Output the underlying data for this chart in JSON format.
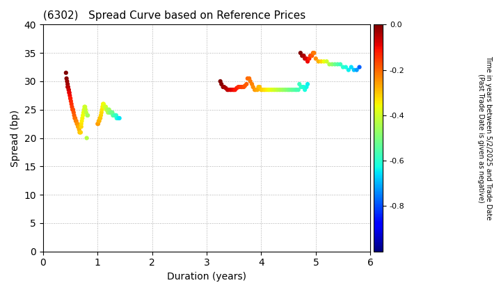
{
  "title": "(6302)   Spread Curve based on Reference Prices",
  "xlabel": "Duration (years)",
  "ylabel": "Spread (bp)",
  "colorbar_label": "Time in years between 5/2/2025 and Trade Date\n(Past Trade Date is given as negative)",
  "xlim": [
    0,
    6
  ],
  "ylim": [
    0,
    40
  ],
  "xticks": [
    0,
    1,
    2,
    3,
    4,
    5,
    6
  ],
  "yticks": [
    0,
    5,
    10,
    15,
    20,
    25,
    30,
    35,
    40
  ],
  "cmap": "jet",
  "vmin": 0.0,
  "vmax": -1.0,
  "colorbar_ticks": [
    0.0,
    -0.2,
    -0.4,
    -0.6,
    -0.8
  ],
  "colorbar_vmin": -1.0,
  "colorbar_vmax": 0.0,
  "cluster1": {
    "duration": [
      0.42,
      0.43,
      0.44,
      0.45,
      0.45,
      0.46,
      0.47,
      0.47,
      0.48,
      0.48,
      0.49,
      0.5,
      0.5,
      0.51,
      0.52,
      0.53,
      0.54,
      0.55,
      0.56,
      0.57,
      0.58,
      0.59,
      0.6,
      0.61,
      0.62,
      0.63,
      0.64,
      0.65,
      0.66,
      0.67,
      0.68,
      0.69,
      0.7,
      0.7,
      0.71,
      0.72,
      0.73,
      0.74,
      0.75,
      0.76,
      0.77,
      0.78,
      0.79,
      0.8,
      0.81,
      0.82
    ],
    "spread": [
      31.5,
      30.5,
      30.0,
      29.5,
      29.0,
      29.0,
      28.5,
      28.5,
      28.0,
      28.0,
      27.5,
      27.0,
      27.0,
      26.5,
      26.0,
      25.5,
      25.0,
      25.0,
      24.5,
      24.0,
      23.5,
      23.5,
      23.0,
      23.0,
      22.5,
      22.5,
      22.0,
      22.0,
      21.5,
      21.0,
      21.0,
      21.0,
      22.0,
      22.5,
      23.0,
      23.5,
      24.0,
      24.5,
      25.0,
      25.5,
      25.5,
      25.0,
      24.5,
      20.0,
      24.0,
      24.0
    ],
    "time": [
      0.0,
      -0.01,
      -0.02,
      -0.03,
      -0.04,
      -0.05,
      -0.06,
      -0.07,
      -0.08,
      -0.09,
      -0.1,
      -0.11,
      -0.12,
      -0.13,
      -0.14,
      -0.15,
      -0.16,
      -0.17,
      -0.18,
      -0.19,
      -0.2,
      -0.21,
      -0.22,
      -0.23,
      -0.24,
      -0.25,
      -0.26,
      -0.27,
      -0.28,
      -0.29,
      -0.3,
      -0.31,
      -0.32,
      -0.33,
      -0.34,
      -0.35,
      -0.36,
      -0.37,
      -0.38,
      -0.39,
      -0.4,
      -0.41,
      -0.42,
      -0.43,
      -0.44,
      -0.45
    ]
  },
  "cluster2": {
    "duration": [
      1.0,
      1.01,
      1.02,
      1.03,
      1.04,
      1.05,
      1.06,
      1.07,
      1.08,
      1.09,
      1.1,
      1.11,
      1.12,
      1.13,
      1.14,
      1.15,
      1.16,
      1.17,
      1.18,
      1.19,
      1.2,
      1.21,
      1.22,
      1.23,
      1.24,
      1.25,
      1.26,
      1.27,
      1.28,
      1.29,
      1.3,
      1.31,
      1.32,
      1.33,
      1.34,
      1.35,
      1.36,
      1.37,
      1.38,
      1.39,
      1.4
    ],
    "spread": [
      22.5,
      22.5,
      23.0,
      23.0,
      23.5,
      23.5,
      24.0,
      24.5,
      25.0,
      25.5,
      26.0,
      26.0,
      25.5,
      25.5,
      25.5,
      25.5,
      25.0,
      25.0,
      25.0,
      24.5,
      25.0,
      25.0,
      24.5,
      24.5,
      24.5,
      24.5,
      24.5,
      24.5,
      24.0,
      24.0,
      24.0,
      24.0,
      24.0,
      24.0,
      24.0,
      23.5,
      23.5,
      23.5,
      23.5,
      23.5,
      23.5
    ],
    "time": [
      -0.25,
      -0.26,
      -0.27,
      -0.28,
      -0.29,
      -0.3,
      -0.31,
      -0.32,
      -0.33,
      -0.34,
      -0.35,
      -0.36,
      -0.37,
      -0.38,
      -0.39,
      -0.4,
      -0.41,
      -0.42,
      -0.43,
      -0.44,
      -0.45,
      -0.46,
      -0.47,
      -0.48,
      -0.49,
      -0.5,
      -0.51,
      -0.52,
      -0.53,
      -0.54,
      -0.55,
      -0.56,
      -0.57,
      -0.58,
      -0.59,
      -0.6,
      -0.61,
      -0.62,
      -0.63,
      -0.64,
      -0.65
    ]
  },
  "cluster3": {
    "duration": [
      3.25,
      3.27,
      3.3,
      3.32,
      3.35,
      3.38,
      3.4,
      3.43,
      3.45,
      3.48,
      3.5,
      3.52,
      3.55,
      3.58,
      3.6,
      3.63,
      3.65,
      3.68,
      3.7,
      3.73,
      3.75,
      3.78,
      3.8,
      3.83,
      3.85,
      3.88,
      3.9,
      3.93,
      3.95,
      3.97,
      4.0,
      4.02,
      4.05,
      4.07,
      4.1,
      4.13,
      4.15,
      4.18,
      4.2,
      4.23,
      4.25,
      4.28,
      4.3,
      4.33,
      4.35,
      4.38,
      4.4,
      4.43,
      4.45,
      4.48,
      4.5,
      4.52,
      4.55,
      4.57,
      4.6,
      4.63,
      4.65,
      4.68,
      4.7,
      4.73,
      4.75,
      4.78,
      4.8,
      4.83,
      4.85
    ],
    "spread": [
      30.0,
      29.5,
      29.0,
      29.0,
      28.8,
      28.5,
      28.5,
      28.5,
      28.5,
      28.5,
      28.5,
      28.5,
      28.8,
      29.0,
      29.0,
      29.0,
      29.0,
      29.0,
      29.2,
      29.5,
      30.5,
      30.5,
      30.0,
      29.5,
      29.0,
      28.5,
      28.5,
      28.5,
      29.0,
      29.0,
      28.5,
      28.5,
      28.5,
      28.5,
      28.5,
      28.5,
      28.5,
      28.5,
      28.5,
      28.5,
      28.5,
      28.5,
      28.5,
      28.5,
      28.5,
      28.5,
      28.5,
      28.5,
      28.5,
      28.5,
      28.5,
      28.5,
      28.5,
      28.5,
      28.5,
      28.5,
      28.5,
      28.5,
      29.5,
      29.0,
      29.0,
      29.0,
      28.5,
      29.0,
      29.5
    ],
    "time": [
      0.0,
      -0.01,
      -0.02,
      -0.03,
      -0.04,
      -0.05,
      -0.06,
      -0.07,
      -0.08,
      -0.09,
      -0.1,
      -0.11,
      -0.12,
      -0.13,
      -0.14,
      -0.15,
      -0.16,
      -0.17,
      -0.18,
      -0.19,
      -0.2,
      -0.21,
      -0.22,
      -0.23,
      -0.24,
      -0.25,
      -0.26,
      -0.27,
      -0.28,
      -0.29,
      -0.3,
      -0.31,
      -0.32,
      -0.33,
      -0.34,
      -0.35,
      -0.36,
      -0.37,
      -0.38,
      -0.39,
      -0.4,
      -0.41,
      -0.42,
      -0.43,
      -0.44,
      -0.45,
      -0.46,
      -0.47,
      -0.48,
      -0.49,
      -0.5,
      -0.51,
      -0.52,
      -0.53,
      -0.54,
      -0.55,
      -0.56,
      -0.57,
      -0.58,
      -0.59,
      -0.6,
      -0.61,
      -0.62,
      -0.63,
      -0.64
    ]
  },
  "cluster4": {
    "duration": [
      4.72,
      4.75,
      4.78,
      4.8,
      4.83,
      4.85,
      4.88,
      4.9,
      4.93,
      4.95,
      4.97,
      5.0,
      5.05,
      5.1,
      5.15,
      5.2,
      5.25,
      5.3,
      5.35,
      5.4,
      5.45,
      5.5,
      5.55,
      5.6,
      5.65,
      5.7,
      5.75,
      5.8
    ],
    "spread": [
      35.0,
      34.5,
      34.5,
      34.0,
      34.0,
      33.5,
      34.0,
      34.5,
      34.5,
      35.0,
      35.0,
      34.0,
      33.5,
      33.5,
      33.5,
      33.5,
      33.0,
      33.0,
      33.0,
      33.0,
      33.0,
      32.5,
      32.5,
      32.0,
      32.5,
      32.0,
      32.0,
      32.5
    ],
    "time": [
      0.0,
      -0.02,
      -0.04,
      -0.06,
      -0.08,
      -0.1,
      -0.12,
      -0.15,
      -0.18,
      -0.2,
      -0.22,
      -0.24,
      -0.28,
      -0.32,
      -0.36,
      -0.4,
      -0.44,
      -0.48,
      -0.52,
      -0.55,
      -0.58,
      -0.6,
      -0.62,
      -0.64,
      -0.66,
      -0.68,
      -0.72,
      -0.78
    ]
  },
  "marker_size": 20,
  "background_color": "#ffffff",
  "grid_color": "#888888",
  "grid_linestyle": ":"
}
